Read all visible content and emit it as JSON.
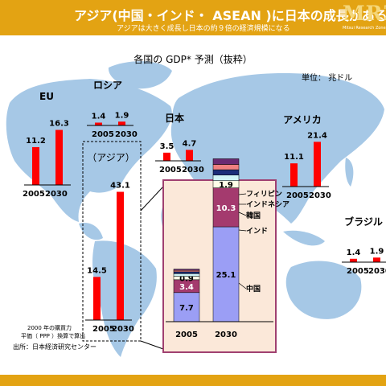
{
  "header": {
    "title": "アジア(中国・インド・ ASEAN )に日本の成長がある",
    "subtitle": "アジアは大きく成長し日本の約９倍の経済規模になる",
    "logo_text": "MRZ",
    "logo_subtext": "Mitsui Research Zone"
  },
  "chart_data": {
    "type": "bar",
    "title": "各国の GDP* 予測（抜粋）",
    "unit": "単位： 兆ドル",
    "categories": [
      "2005",
      "2030"
    ],
    "regions": [
      {
        "name": "EU",
        "values": [
          11.2,
          16.3
        ],
        "labels": [
          "11.2",
          "16.3"
        ]
      },
      {
        "name": "ロシア",
        "values": [
          1.4,
          1.9
        ],
        "labels": [
          "1.4",
          "1.9"
        ]
      },
      {
        "name": "日本",
        "values": [
          3.5,
          4.7
        ],
        "labels": [
          "3.5",
          "4.7"
        ]
      },
      {
        "name": "アメリカ",
        "values": [
          11.1,
          21.4
        ],
        "labels": [
          "11.1",
          "21.4"
        ]
      },
      {
        "name": "ブラジル",
        "values": [
          1.4,
          1.9
        ],
        "labels": [
          "1.4",
          "1.9"
        ]
      },
      {
        "name": "アジア",
        "values": [
          14.5,
          43.1
        ],
        "labels": [
          "14.5",
          "43.1"
        ]
      }
    ],
    "asia_breakdown": {
      "categories": [
        "2005",
        "2030"
      ],
      "series": [
        {
          "name": "中国",
          "values": [
            7.7,
            25.1
          ],
          "labels": [
            "7.7",
            "25.1"
          ],
          "color": "#9b9ef5"
        },
        {
          "name": "インド",
          "values": [
            3.4,
            10.3
          ],
          "labels": [
            "3.4",
            "10.3"
          ],
          "color": "#a43a6e"
        },
        {
          "name": "韓国",
          "values": [
            0.9,
            1.9
          ],
          "labels": [
            "0.9",
            "1.9"
          ],
          "color": "#ffffe8"
        },
        {
          "name": "インドネシア",
          "values": [
            0.7,
            1.5
          ],
          "labels": [
            "",
            ""
          ],
          "color": "#d0f4f7"
        },
        {
          "name": "",
          "values": [
            0.5,
            1.4
          ],
          "labels": [
            "",
            ""
          ],
          "color": "#1c2e7a"
        },
        {
          "name": "フィリピン",
          "values": [
            0.4,
            1.4
          ],
          "labels": [
            "",
            ""
          ],
          "color": "#f08080"
        },
        {
          "name": "",
          "values": [
            0.3,
            1.5
          ],
          "labels": [
            "",
            ""
          ],
          "color": "#6a2a72"
        }
      ],
      "legend_labels": [
        "フィリピン",
        "インドネシア",
        "韓国",
        "インド",
        "中国"
      ]
    },
    "bar_color": "#ff0000",
    "panel_border_color": "#a04070",
    "panel_fill_color": "#fbe8d9",
    "map_color": "#a6c8e6"
  },
  "footnote": {
    "line1": "2000 年の購買力",
    "line2": "平価（ PPP ）換算で算出",
    "source": "出所：日本経済研究センター"
  }
}
